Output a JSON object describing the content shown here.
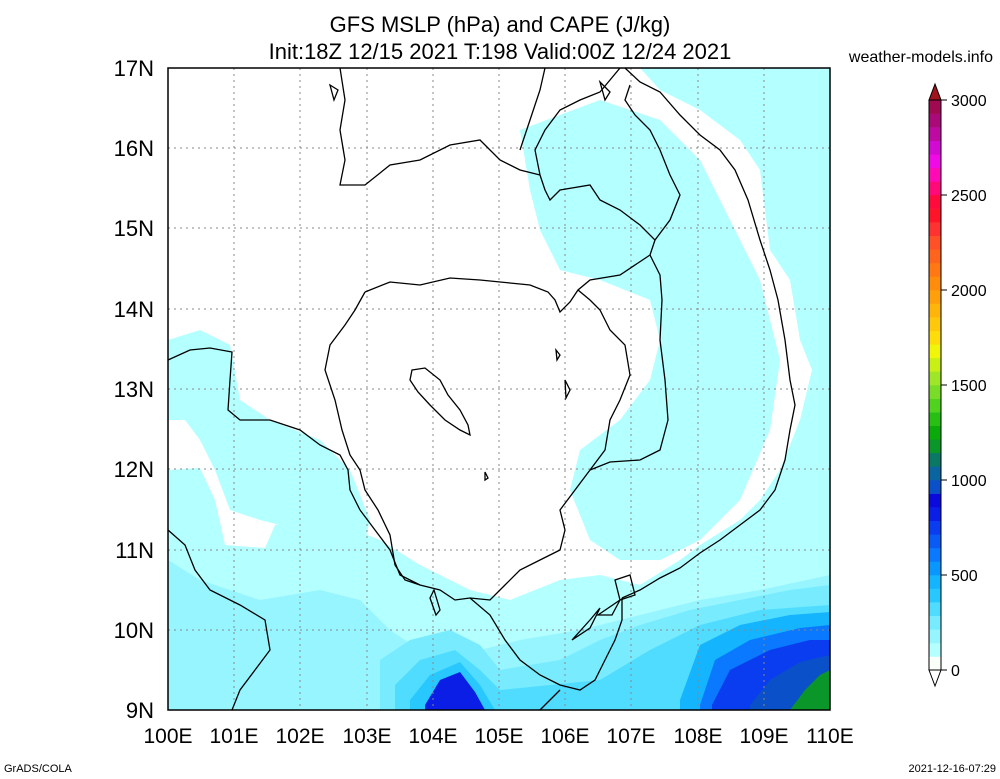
{
  "header": {
    "title_line1": "GFS MSLP (hPa) and CAPE (J/kg)",
    "title_line2": "Init:18Z 12/15 2021 T:198 Valid:00Z 12/24 2021",
    "site": "weather-models.info"
  },
  "footer": {
    "left": "GrADS/COLA",
    "right": "2021-12-16-07:29"
  },
  "map": {
    "lat_labels": [
      "17N",
      "16N",
      "15N",
      "14N",
      "13N",
      "12N",
      "11N",
      "10N",
      "9N"
    ],
    "lon_labels": [
      "100E",
      "101E",
      "102E",
      "103E",
      "104E",
      "105E",
      "106E",
      "107E",
      "108E",
      "109E",
      "110E"
    ],
    "lat_range": [
      9,
      17
    ],
    "lon_range": [
      100,
      110
    ]
  },
  "colorbar": {
    "labels": [
      "3000",
      "2500",
      "2000",
      "1500",
      "1000",
      "500",
      "0"
    ],
    "colors": [
      "#fafffa",
      "#b4ffff",
      "#96f5ff",
      "#78ebff",
      "#50dcff",
      "#28c8ff",
      "#14b4ff",
      "#0a96ff",
      "#0a78ff",
      "#0a5af5",
      "#0a3cf0",
      "#0a1ee6",
      "#0a0adc",
      "#0a50c8",
      "#0a64a0",
      "#0a7864",
      "#0a9628",
      "#0aaa0a",
      "#28be14",
      "#50d21e",
      "#78dc28",
      "#a0e628",
      "#c8f014",
      "#f0f50a",
      "#ffdc0a",
      "#ffc80a",
      "#ffb40a",
      "#ffa00a",
      "#ff8c0a",
      "#ff7814",
      "#ff641e",
      "#ff5028",
      "#ff3232",
      "#ff1428",
      "#ff0a3c",
      "#ff0a78",
      "#ff0ab4",
      "#f00ae6",
      "#d20ad2",
      "#be0aa0",
      "#aa0a78",
      "#a00a50"
    ],
    "top_color": "#a0141e"
  }
}
